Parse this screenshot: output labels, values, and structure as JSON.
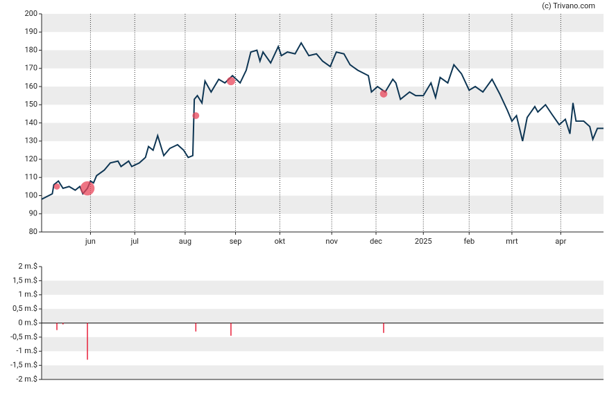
{
  "credit": "(c) Trivano.com",
  "chart_data": [
    {
      "type": "line",
      "x": [
        0,
        7,
        8,
        11,
        14,
        18,
        22,
        25,
        27,
        30,
        32,
        34,
        36,
        41,
        45,
        50,
        52,
        57,
        59,
        64,
        68,
        70,
        73,
        76,
        80,
        84,
        89,
        93,
        96,
        99,
        100,
        102,
        105,
        107,
        111,
        116,
        120,
        125,
        130,
        134,
        137,
        141,
        143,
        145,
        150,
        155,
        157,
        161,
        166,
        170,
        175,
        180,
        184,
        189,
        193,
        198,
        202,
        207,
        214,
        216,
        220,
        225,
        230,
        232,
        235,
        241,
        245,
        250,
        255,
        258,
        261,
        266,
        270,
        275,
        280,
        284,
        289,
        295,
        300,
        305,
        308,
        311,
        315,
        318,
        323,
        325,
        330,
        334,
        339,
        343,
        346,
        348,
        350,
        355,
        359,
        361,
        364,
        368
      ],
      "series": [
        {
          "color": "#0d3553",
          "values": [
            98,
            101,
            106,
            108,
            104,
            105,
            103,
            105,
            101,
            104,
            108,
            107,
            111,
            114,
            118,
            119,
            116,
            119,
            116,
            118,
            121,
            127,
            125,
            133,
            122,
            126,
            128,
            125,
            121,
            122,
            153,
            155,
            151,
            163,
            157,
            164,
            162,
            166,
            162,
            169,
            179,
            180,
            174,
            179,
            173,
            182,
            177,
            179,
            178,
            184,
            177,
            178,
            174,
            171,
            179,
            178,
            172,
            169,
            166,
            157,
            160,
            157,
            164,
            162,
            153,
            157,
            155,
            155,
            162,
            154,
            165,
            162,
            172,
            167,
            158,
            160,
            157,
            164,
            156,
            147,
            141,
            144,
            130,
            143,
            149,
            146,
            150,
            145,
            139,
            142,
            134,
            151,
            141,
            141,
            138,
            131,
            137,
            137
          ]
        }
      ],
      "markers": {
        "color": "#e8455a",
        "x": [
          10,
          30,
          101,
          124,
          224
        ],
        "values": [
          105,
          104,
          144,
          163,
          156
        ]
      },
      "xlim": [
        0,
        368
      ],
      "xticks": [
        {
          "value": 32,
          "label": "jun"
        },
        {
          "value": 61,
          "label": "jul"
        },
        {
          "value": 94,
          "label": "aug"
        },
        {
          "value": 127,
          "label": "sep"
        },
        {
          "value": 156,
          "label": "okt"
        },
        {
          "value": 190,
          "label": "nov"
        },
        {
          "value": 219,
          "label": "dec"
        },
        {
          "value": 250,
          "label": "2025"
        },
        {
          "value": 280,
          "label": "feb"
        },
        {
          "value": 308,
          "label": "mrt"
        },
        {
          "value": 340,
          "label": "apr"
        }
      ],
      "ylim": [
        80,
        200
      ],
      "yticks": [
        80,
        90,
        100,
        110,
        120,
        130,
        140,
        150,
        160,
        170,
        180,
        190,
        200
      ]
    },
    {
      "type": "bar",
      "x": [
        10,
        14,
        30,
        101,
        124,
        224
      ],
      "values": [
        -0.25,
        -0.05,
        -1.3,
        -0.3,
        -0.45,
        -0.35
      ],
      "color": "#e8203a",
      "xlim": [
        0,
        368
      ],
      "ylim": [
        -2,
        2
      ],
      "yticks": [
        {
          "value": 2,
          "label": "2 m.$"
        },
        {
          "value": 1.5,
          "label": "1,5 m.$"
        },
        {
          "value": 1,
          "label": "1 m.$"
        },
        {
          "value": 0.5,
          "label": "0,5 m.$"
        },
        {
          "value": 0,
          "label": "0 m.$"
        },
        {
          "value": -0.5,
          "label": "-0,5 m.$"
        },
        {
          "value": -1,
          "label": "-1 m.$"
        },
        {
          "value": -1.5,
          "label": "-1,5 m.$"
        },
        {
          "value": -2,
          "label": "-2 m.$"
        }
      ]
    }
  ]
}
